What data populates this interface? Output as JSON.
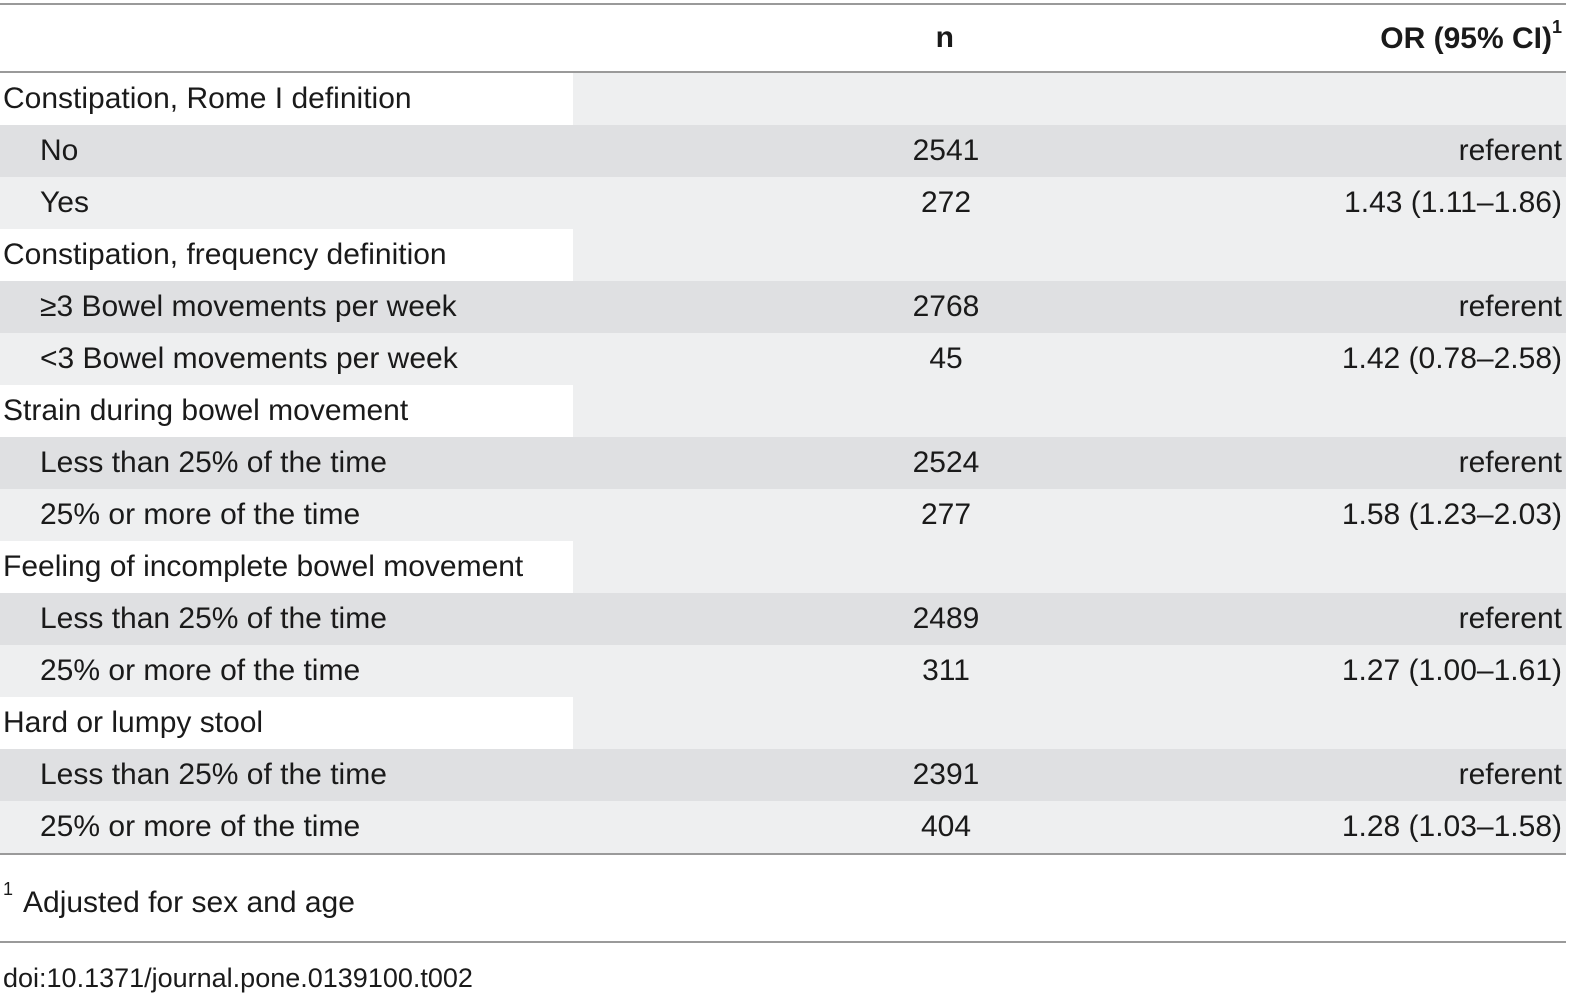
{
  "header": {
    "label": "",
    "n": "n",
    "or": "OR (95% CI)",
    "or_sup": "1"
  },
  "rows": [
    {
      "type": "group",
      "label": "Constipation, Rome I definition",
      "n": "",
      "or": ""
    },
    {
      "type": "sub",
      "label": "No",
      "n": "2541",
      "or": "referent"
    },
    {
      "type": "sub",
      "label": "Yes",
      "n": "272",
      "or": "1.43 (1.11–1.86)"
    },
    {
      "type": "group",
      "label": "Constipation, frequency definition",
      "n": "",
      "or": ""
    },
    {
      "type": "sub",
      "label": "≥3 Bowel movements per week",
      "n": "2768",
      "or": "referent"
    },
    {
      "type": "sub",
      "label": "<3 Bowel movements per week",
      "n": "45",
      "or": "1.42 (0.78–2.58)"
    },
    {
      "type": "group",
      "label": "Strain during bowel movement",
      "n": "",
      "or": ""
    },
    {
      "type": "sub",
      "label": "Less than 25% of the time",
      "n": "2524",
      "or": "referent"
    },
    {
      "type": "sub",
      "label": "25% or more of the time",
      "n": "277",
      "or": "1.58 (1.23–2.03)"
    },
    {
      "type": "group",
      "label": "Feeling of incomplete bowel movement",
      "n": "",
      "or": ""
    },
    {
      "type": "sub",
      "label": "Less than 25% of the time",
      "n": "2489",
      "or": "referent"
    },
    {
      "type": "sub",
      "label": "25% or more of the time",
      "n": "311",
      "or": "1.27 (1.00–1.61)"
    },
    {
      "type": "group",
      "label": "Hard or lumpy stool",
      "n": "",
      "or": ""
    },
    {
      "type": "sub",
      "label": "Less than 25% of the time",
      "n": "2391",
      "or": "referent"
    },
    {
      "type": "sub",
      "label": "25% or more of the time",
      "n": "404",
      "or": "1.28 (1.03–1.58)"
    }
  ],
  "footnote": {
    "marker": "1",
    "text": "Adjusted for sex and age"
  },
  "doi": "doi:10.1371/journal.pone.0139100.t002",
  "colors": {
    "row_dark": "#dfe0e2",
    "row_light": "#eeeff0",
    "rule": "#9a9a9a"
  }
}
